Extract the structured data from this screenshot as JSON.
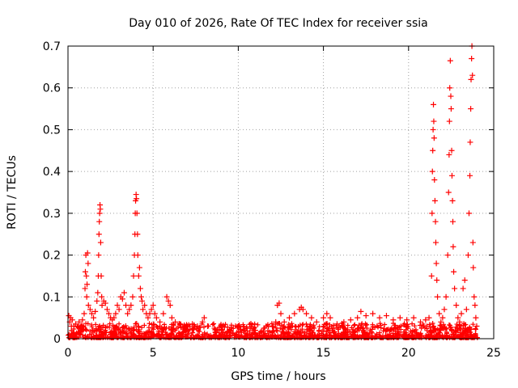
{
  "chart_data": {
    "type": "scatter",
    "title": "Day 010 of 2026, Rate Of TEC Index for receiver ssia",
    "xlabel": "GPS time / hours",
    "ylabel": "ROTI / TECUs",
    "xlim": [
      0,
      25
    ],
    "ylim": [
      0,
      0.7
    ],
    "xticks": [
      0,
      5,
      10,
      15,
      20,
      25
    ],
    "xtick_labels": [
      "0",
      "5",
      "10",
      "15",
      "20",
      "25"
    ],
    "yticks": [
      0,
      0.1,
      0.2,
      0.3,
      0.4,
      0.5,
      0.6,
      0.7
    ],
    "ytick_labels": [
      "0",
      "0.1",
      "0.2",
      "0.3",
      "0.4",
      "0.5",
      "0.6",
      "0.7"
    ],
    "grid": true,
    "marker": "+",
    "color": "#ff0000",
    "series": [
      {
        "name": "ROTI",
        "points": [
          [
            0.05,
            0.055
          ],
          [
            0.1,
            0.04
          ],
          [
            0.15,
            0.05
          ],
          [
            0.2,
            0.03
          ],
          [
            0.25,
            0.045
          ],
          [
            0.35,
            0.03
          ],
          [
            0.45,
            0.035
          ],
          [
            0.55,
            0.03
          ],
          [
            0.65,
            0.04
          ],
          [
            0.75,
            0.03
          ],
          [
            0.85,
            0.045
          ],
          [
            0.95,
            0.06
          ],
          [
            1.0,
            0.12
          ],
          [
            1.02,
            0.16
          ],
          [
            1.05,
            0.2
          ],
          [
            1.08,
            0.15
          ],
          [
            1.1,
            0.1
          ],
          [
            1.12,
            0.13
          ],
          [
            1.15,
            0.205
          ],
          [
            1.18,
            0.18
          ],
          [
            1.2,
            0.08
          ],
          [
            1.3,
            0.07
          ],
          [
            1.4,
            0.06
          ],
          [
            1.5,
            0.05
          ],
          [
            1.6,
            0.065
          ],
          [
            1.7,
            0.09
          ],
          [
            1.75,
            0.11
          ],
          [
            1.78,
            0.15
          ],
          [
            1.8,
            0.2
          ],
          [
            1.82,
            0.25
          ],
          [
            1.84,
            0.28
          ],
          [
            1.86,
            0.3
          ],
          [
            1.88,
            0.32
          ],
          [
            1.9,
            0.31
          ],
          [
            1.92,
            0.23
          ],
          [
            1.95,
            0.15
          ],
          [
            1.98,
            0.1
          ],
          [
            2.0,
            0.08
          ],
          [
            2.1,
            0.09
          ],
          [
            2.2,
            0.085
          ],
          [
            2.3,
            0.07
          ],
          [
            2.4,
            0.06
          ],
          [
            2.5,
            0.05
          ],
          [
            2.6,
            0.045
          ],
          [
            2.7,
            0.05
          ],
          [
            2.8,
            0.06
          ],
          [
            2.9,
            0.08
          ],
          [
            3.0,
            0.07
          ],
          [
            3.1,
            0.1
          ],
          [
            3.2,
            0.095
          ],
          [
            3.3,
            0.11
          ],
          [
            3.4,
            0.08
          ],
          [
            3.5,
            0.06
          ],
          [
            3.6,
            0.07
          ],
          [
            3.7,
            0.08
          ],
          [
            3.8,
            0.1
          ],
          [
            3.85,
            0.15
          ],
          [
            3.9,
            0.2
          ],
          [
            3.93,
            0.25
          ],
          [
            3.95,
            0.3
          ],
          [
            3.97,
            0.33
          ],
          [
            4.0,
            0.345
          ],
          [
            4.02,
            0.335
          ],
          [
            4.05,
            0.3
          ],
          [
            4.08,
            0.25
          ],
          [
            4.1,
            0.2
          ],
          [
            4.15,
            0.15
          ],
          [
            4.2,
            0.17
          ],
          [
            4.25,
            0.12
          ],
          [
            4.3,
            0.1
          ],
          [
            4.35,
            0.09
          ],
          [
            4.4,
            0.07
          ],
          [
            4.5,
            0.08
          ],
          [
            4.6,
            0.06
          ],
          [
            4.7,
            0.05
          ],
          [
            4.8,
            0.06
          ],
          [
            4.9,
            0.07
          ],
          [
            5.0,
            0.08
          ],
          [
            5.1,
            0.06
          ],
          [
            5.2,
            0.05
          ],
          [
            5.4,
            0.04
          ],
          [
            5.6,
            0.06
          ],
          [
            5.8,
            0.1
          ],
          [
            5.9,
            0.09
          ],
          [
            6.0,
            0.08
          ],
          [
            6.1,
            0.05
          ],
          [
            6.3,
            0.04
          ],
          [
            6.6,
            0.035
          ],
          [
            7.0,
            0.03
          ],
          [
            7.3,
            0.035
          ],
          [
            7.6,
            0.03
          ],
          [
            7.9,
            0.04
          ],
          [
            8.0,
            0.05
          ],
          [
            8.2,
            0.03
          ],
          [
            8.6,
            0.025
          ],
          [
            9.0,
            0.02
          ],
          [
            9.5,
            0.02
          ],
          [
            10.0,
            0.03
          ],
          [
            10.5,
            0.025
          ],
          [
            11.0,
            0.02
          ],
          [
            11.5,
            0.025
          ],
          [
            12.0,
            0.03
          ],
          [
            12.2,
            0.04
          ],
          [
            12.3,
            0.08
          ],
          [
            12.4,
            0.085
          ],
          [
            12.5,
            0.06
          ],
          [
            12.7,
            0.04
          ],
          [
            13.0,
            0.05
          ],
          [
            13.3,
            0.06
          ],
          [
            13.6,
            0.07
          ],
          [
            13.7,
            0.075
          ],
          [
            13.8,
            0.07
          ],
          [
            14.0,
            0.06
          ],
          [
            14.3,
            0.05
          ],
          [
            14.6,
            0.04
          ],
          [
            15.0,
            0.05
          ],
          [
            15.2,
            0.06
          ],
          [
            15.4,
            0.05
          ],
          [
            15.8,
            0.035
          ],
          [
            16.2,
            0.04
          ],
          [
            16.6,
            0.045
          ],
          [
            17.0,
            0.05
          ],
          [
            17.2,
            0.065
          ],
          [
            17.5,
            0.055
          ],
          [
            17.9,
            0.06
          ],
          [
            18.3,
            0.05
          ],
          [
            18.7,
            0.055
          ],
          [
            19.1,
            0.045
          ],
          [
            19.5,
            0.05
          ],
          [
            19.9,
            0.045
          ],
          [
            20.3,
            0.05
          ],
          [
            20.7,
            0.04
          ],
          [
            21.0,
            0.045
          ],
          [
            21.2,
            0.05
          ],
          [
            21.35,
            0.15
          ],
          [
            21.38,
            0.3
          ],
          [
            21.4,
            0.4
          ],
          [
            21.42,
            0.45
          ],
          [
            21.44,
            0.5
          ],
          [
            21.46,
            0.56
          ],
          [
            21.48,
            0.52
          ],
          [
            21.5,
            0.48
          ],
          [
            21.52,
            0.38
          ],
          [
            21.55,
            0.33
          ],
          [
            21.58,
            0.28
          ],
          [
            21.6,
            0.23
          ],
          [
            21.63,
            0.18
          ],
          [
            21.66,
            0.14
          ],
          [
            21.7,
            0.1
          ],
          [
            21.8,
            0.06
          ],
          [
            21.9,
            0.04
          ],
          [
            22.0,
            0.05
          ],
          [
            22.1,
            0.07
          ],
          [
            22.2,
            0.1
          ],
          [
            22.3,
            0.2
          ],
          [
            22.35,
            0.35
          ],
          [
            22.38,
            0.44
          ],
          [
            22.4,
            0.52
          ],
          [
            22.42,
            0.6
          ],
          [
            22.45,
            0.665
          ],
          [
            22.48,
            0.58
          ],
          [
            22.5,
            0.55
          ],
          [
            22.53,
            0.45
          ],
          [
            22.55,
            0.39
          ],
          [
            22.58,
            0.33
          ],
          [
            22.6,
            0.28
          ],
          [
            22.62,
            0.22
          ],
          [
            22.65,
            0.16
          ],
          [
            22.7,
            0.12
          ],
          [
            22.8,
            0.08
          ],
          [
            22.9,
            0.05
          ],
          [
            23.0,
            0.04
          ],
          [
            23.1,
            0.06
          ],
          [
            23.2,
            0.12
          ],
          [
            23.3,
            0.14
          ],
          [
            23.4,
            0.07
          ],
          [
            23.5,
            0.2
          ],
          [
            23.55,
            0.3
          ],
          [
            23.6,
            0.39
          ],
          [
            23.62,
            0.47
          ],
          [
            23.65,
            0.55
          ],
          [
            23.67,
            0.62
          ],
          [
            23.7,
            0.67
          ],
          [
            23.72,
            0.7
          ],
          [
            23.75,
            0.63
          ],
          [
            23.78,
            0.23
          ],
          [
            23.8,
            0.17
          ],
          [
            23.85,
            0.1
          ],
          [
            23.9,
            0.08
          ],
          [
            23.95,
            0.05
          ],
          [
            24.0,
            0.03
          ]
        ]
      }
    ]
  }
}
